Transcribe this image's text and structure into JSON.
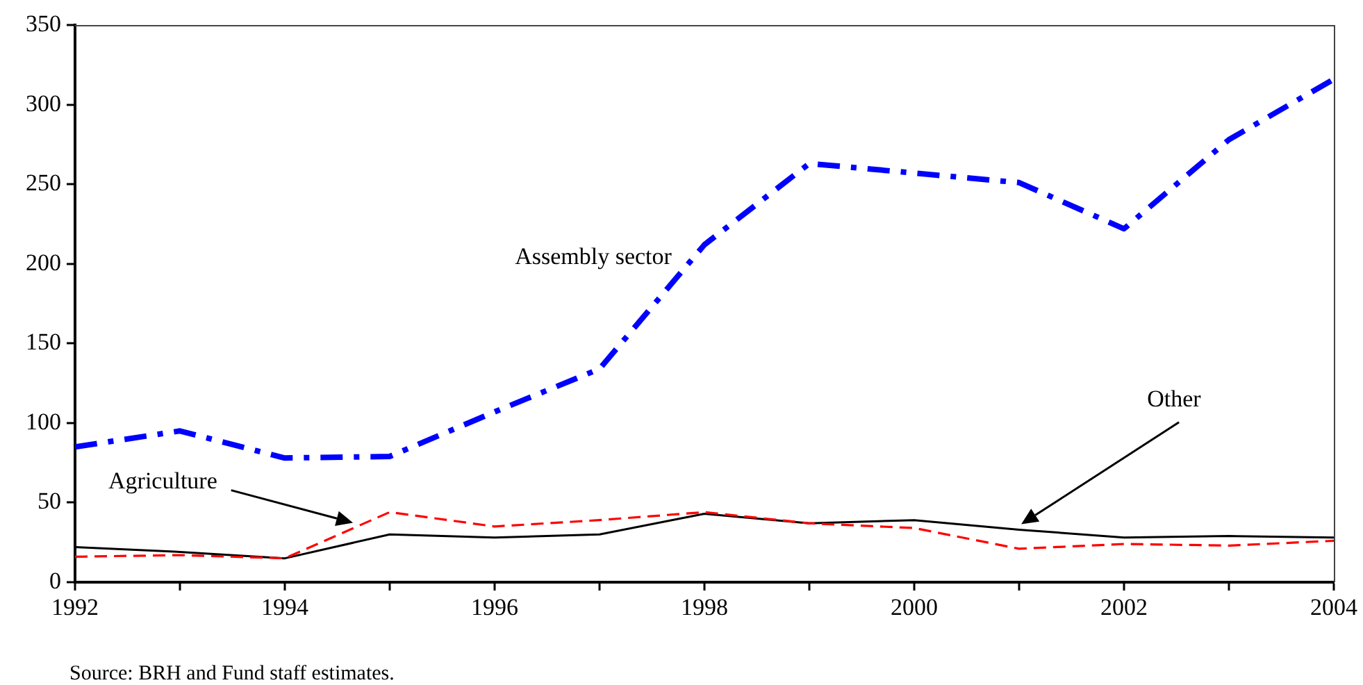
{
  "chart_data": {
    "type": "line",
    "annotations": [
      "Source: BRH and Fund staff estimates."
    ],
    "x": [
      1992,
      1993,
      1994,
      1995,
      1996,
      1997,
      1998,
      1999,
      2000,
      2001,
      2002,
      2003,
      2004
    ],
    "series": [
      {
        "name": "Assembly sector",
        "color": "#0000ff",
        "line_style": "dashdot",
        "values": [
          85,
          95,
          78,
          79,
          107,
          134,
          212,
          263,
          257,
          251,
          222,
          278,
          316
        ]
      },
      {
        "name": "Agriculture",
        "color": "#ff0000",
        "line_style": "dashed",
        "values": [
          16,
          17,
          15,
          44,
          35,
          39,
          44,
          37,
          34,
          21,
          24,
          23,
          26
        ]
      },
      {
        "name": "Other",
        "color": "#000000",
        "line_style": "solid",
        "values": [
          22,
          19,
          15,
          30,
          28,
          30,
          43,
          37,
          39,
          33,
          28,
          29,
          28
        ]
      }
    ],
    "xlim": [
      1992,
      2004
    ],
    "xticks": [
      1992,
      {
        "value": 1993,
        "label": null
      },
      1994,
      {
        "value": 1995,
        "label": null
      },
      1996,
      {
        "value": 1997,
        "label": null
      },
      1998,
      {
        "value": 1999,
        "label": null
      },
      2000,
      {
        "value": 2001,
        "label": null
      },
      2002,
      {
        "value": 2003,
        "label": null
      },
      2004
    ],
    "ylim": [
      0,
      350
    ],
    "yticks": [
      0,
      50,
      100,
      150,
      200,
      250,
      300,
      350
    ],
    "grid": false,
    "legend": false
  }
}
